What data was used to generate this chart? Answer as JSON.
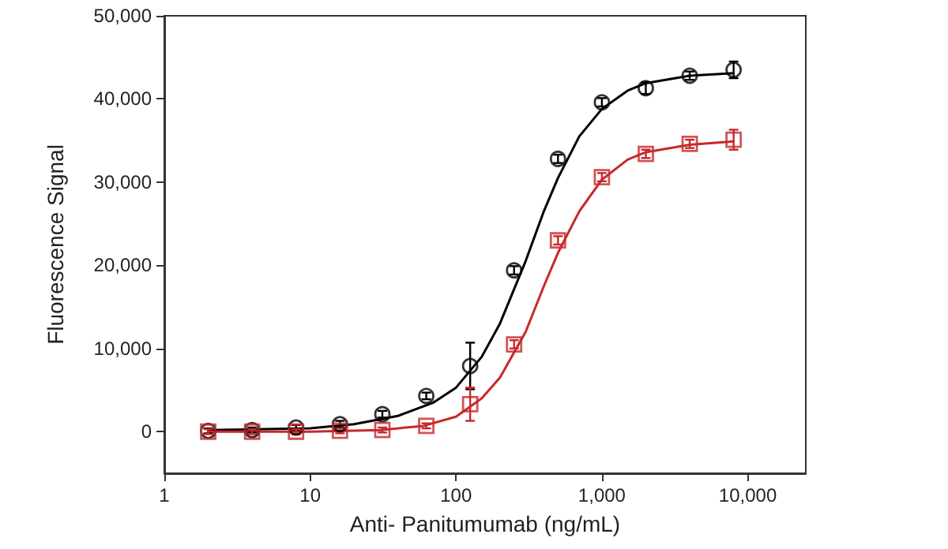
{
  "chart_data": {
    "type": "scatter",
    "xlabel": "Anti- Panitumumab (ng/mL)",
    "ylabel": "Fluorescence Signal",
    "log": "x",
    "xlim": [
      1,
      25000
    ],
    "xticks": [
      1,
      10,
      100,
      {
        "value": 1000,
        "label": "1,000"
      },
      {
        "value": 10000,
        "label": "10,000"
      }
    ],
    "ylim": [
      -5000,
      50000
    ],
    "yticks": [
      0,
      {
        "value": 10000,
        "label": "10,000"
      },
      {
        "value": 20000,
        "label": "20,000"
      },
      {
        "value": 30000,
        "label": "30,000"
      },
      {
        "value": 40000,
        "label": "40,000"
      },
      {
        "value": 50000,
        "label": "50,000"
      }
    ],
    "grid": false,
    "series": [
      {
        "type": "line",
        "color": "#000000",
        "marker": "none",
        "line_style": "solid",
        "x": [
          2,
          5,
          10,
          20,
          40,
          70,
          100,
          150,
          200,
          300,
          400,
          500,
          700,
          1000,
          1500,
          2000,
          4000,
          8000
        ],
        "values": [
          200,
          300,
          400,
          900,
          1900,
          3500,
          5300,
          9000,
          13000,
          20500,
          26500,
          30500,
          35500,
          38800,
          41000,
          41900,
          42800,
          43100
        ]
      },
      {
        "type": "line",
        "color": "#c8282a",
        "marker": "none",
        "line_style": "solid",
        "x": [
          2,
          10,
          30,
          60,
          100,
          150,
          200,
          300,
          400,
          500,
          700,
          1000,
          1500,
          2000,
          4000,
          8000
        ],
        "values": [
          0,
          0,
          200,
          700,
          1800,
          4000,
          6500,
          12000,
          17500,
          21500,
          26500,
          30300,
          32700,
          33600,
          34500,
          34900
        ]
      },
      {
        "color": "#000000",
        "marker": "circle",
        "x": [
          2,
          4,
          8,
          16,
          31.25,
          62.5,
          125,
          250,
          500,
          1000,
          2000,
          4000,
          8000
        ],
        "values": [
          100,
          200,
          500,
          900,
          2100,
          4300,
          7900,
          19400,
          32800,
          39600,
          41300,
          42800,
          43500
        ],
        "errors": [
          300,
          300,
          300,
          400,
          400,
          400,
          2800,
          500,
          500,
          500,
          700,
          500,
          1000
        ]
      },
      {
        "color": "#c8282a",
        "marker": "square",
        "x": [
          2,
          4,
          8,
          16,
          31.25,
          62.5,
          125,
          250,
          500,
          1000,
          2000,
          4000,
          8000
        ],
        "values": [
          0,
          0,
          0,
          100,
          200,
          700,
          3300,
          10500,
          23000,
          30600,
          33400,
          34600,
          35100
        ],
        "errors": [
          300,
          300,
          300,
          300,
          300,
          300,
          2000,
          500,
          500,
          500,
          500,
          500,
          1200
        ]
      }
    ]
  }
}
